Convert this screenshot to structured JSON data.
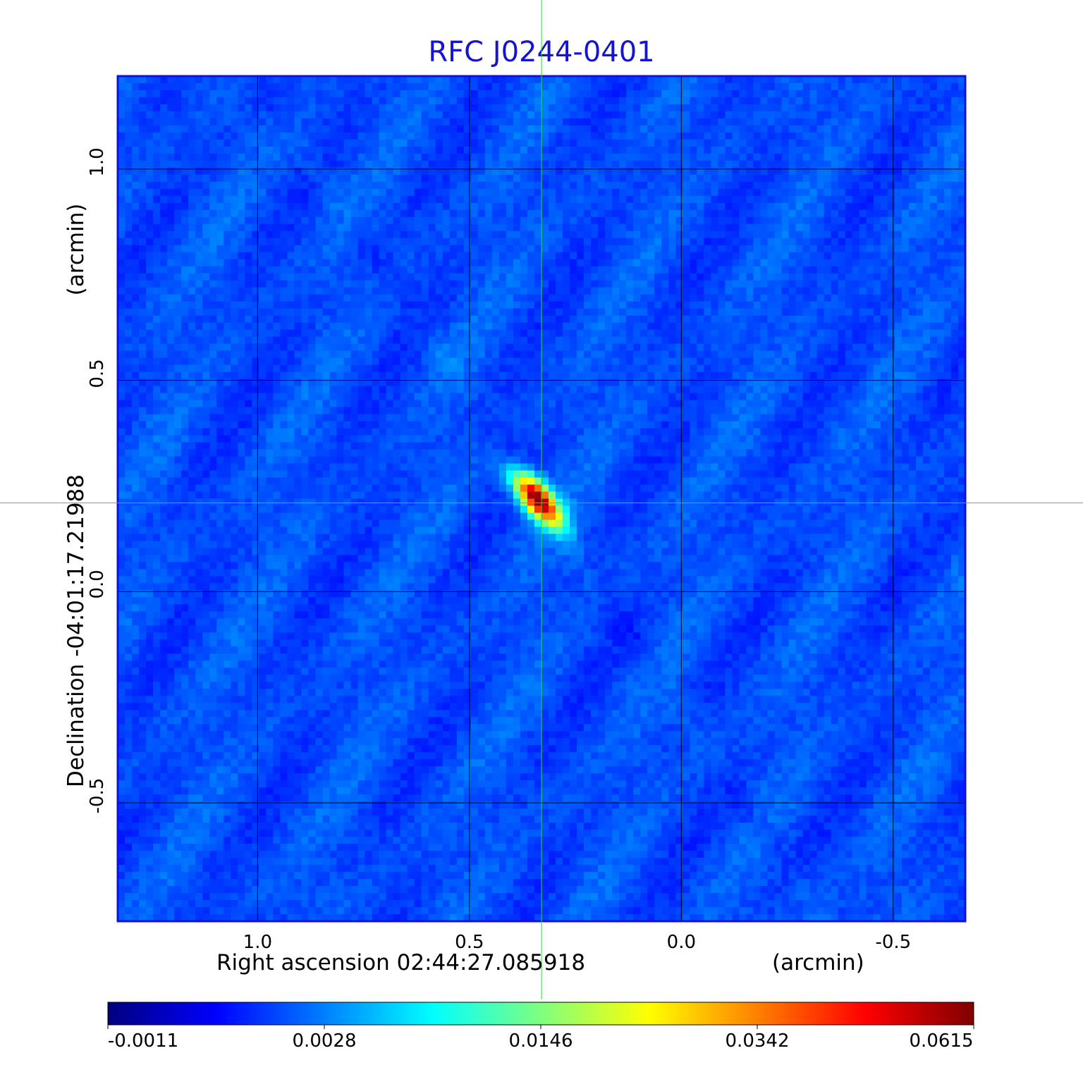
{
  "chart_data": {
    "type": "heatmap",
    "title": "RFC J0244-0401",
    "xlabel": "Right ascension  02:44:27.085918",
    "x_unit_label": "(arcmin)",
    "ylabel": "Declination  -04:01:17.21988",
    "y_unit_label": "(arcmin)",
    "xlim": [
      1.33,
      -0.67
    ],
    "ylim": [
      -0.78,
      1.22
    ],
    "x_ticks": [
      1.0,
      0.5,
      0.0,
      -0.5
    ],
    "x_tick_labels": [
      "1.0",
      "0.5",
      "0.0",
      "-0.5"
    ],
    "y_ticks": [
      1.0,
      0.5,
      0.0,
      -0.5
    ],
    "y_tick_labels": [
      "1.0",
      "0.5",
      "0.0",
      "-0.5"
    ],
    "grid": true,
    "crosshair": {
      "x": 0.33,
      "y": 0.21,
      "color": "#20e020"
    },
    "source_peak": {
      "x": 0.34,
      "y": 0.22,
      "value": 0.0615
    },
    "colorbar": {
      "colormap": "jet",
      "position": "bottom",
      "ticks": [
        "-0.0011",
        "0.0028",
        "0.0146",
        "0.0342",
        "0.0615"
      ]
    }
  }
}
